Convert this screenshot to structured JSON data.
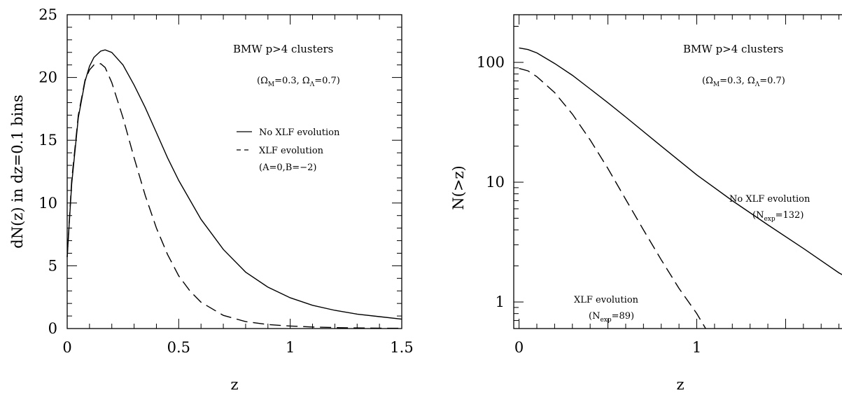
{
  "chart_data": [
    {
      "type": "line",
      "ylabel": "dN(z) in dz=0.1 bins",
      "xlabel": "z",
      "xlim": [
        0,
        1.5
      ],
      "ylim": [
        0,
        25
      ],
      "xticks": [
        {
          "value": 0,
          "label": "0"
        },
        {
          "value": 0.5,
          "label": "0.5"
        },
        {
          "value": 1,
          "label": "1"
        },
        {
          "value": 1.5,
          "label": "1.5"
        }
      ],
      "yticks": [
        {
          "value": 0,
          "label": "0"
        },
        {
          "value": 5,
          "label": "5"
        },
        {
          "value": 10,
          "label": "10"
        },
        {
          "value": 15,
          "label": "15"
        },
        {
          "value": 20,
          "label": "20"
        },
        {
          "value": 25,
          "label": "25"
        }
      ],
      "annotations": {
        "title": "BMW p>4 clusters",
        "cosmology": "(Ω",
        "cosmology_sub1": "M",
        "cosmology_mid": "=0.3,  Ω",
        "cosmology_sub2": "Λ",
        "cosmology_end": "=0.7)"
      },
      "legend": [
        {
          "label": "No XLF evolution",
          "style": "solid"
        },
        {
          "label": "XLF evolution",
          "style": "dashed"
        },
        {
          "label": "(A=0,B=−2)",
          "style": "none"
        }
      ],
      "series": [
        {
          "style": "solid",
          "x": [
            0,
            0.02,
            0.05,
            0.08,
            0.1,
            0.12,
            0.15,
            0.17,
            0.2,
            0.25,
            0.3,
            0.35,
            0.4,
            0.45,
            0.5,
            0.6,
            0.7,
            0.8,
            0.9,
            1.0,
            1.1,
            1.2,
            1.3,
            1.4,
            1.5
          ],
          "values": [
            5.7,
            11.5,
            16.8,
            19.7,
            20.9,
            21.6,
            22.1,
            22.2,
            22.0,
            21.0,
            19.4,
            17.6,
            15.6,
            13.6,
            11.8,
            8.7,
            6.3,
            4.5,
            3.3,
            2.45,
            1.85,
            1.45,
            1.15,
            0.95,
            0.75
          ]
        },
        {
          "style": "dashed",
          "x": [
            0,
            0.02,
            0.05,
            0.08,
            0.1,
            0.12,
            0.15,
            0.17,
            0.2,
            0.25,
            0.3,
            0.35,
            0.4,
            0.45,
            0.5,
            0.55,
            0.6,
            0.7,
            0.8,
            0.9,
            1.0,
            1.1,
            1.2,
            1.3,
            1.4,
            1.5
          ],
          "values": [
            5.7,
            11.8,
            17.0,
            19.8,
            20.6,
            21.0,
            21.1,
            20.8,
            19.6,
            16.8,
            13.6,
            10.6,
            8.0,
            5.9,
            4.2,
            3.0,
            2.1,
            1.05,
            0.55,
            0.32,
            0.2,
            0.12,
            0.08,
            0.05,
            0.03,
            0.02
          ]
        }
      ]
    },
    {
      "type": "line",
      "ylabel": "N(>z)",
      "xlabel": "z",
      "yscale": "log",
      "xlim": [
        -0.03,
        1.9
      ],
      "ylim": [
        0.6,
        250
      ],
      "xticks": [
        {
          "value": 0,
          "label": "0"
        },
        {
          "value": 1,
          "label": "1"
        }
      ],
      "yticks": [
        {
          "value": 1,
          "label": "1"
        },
        {
          "value": 10,
          "label": "10"
        },
        {
          "value": 100,
          "label": "100"
        }
      ],
      "annotations": {
        "title": "BMW p>4 clusters",
        "cosmology": "(Ω",
        "cosmology_sub1": "M",
        "cosmology_mid": "=0.3,  Ω",
        "cosmology_sub2": "Λ",
        "cosmology_end": "=0.7)",
        "solid_label": "No XLF evolution",
        "solid_nexp_pre": "(N",
        "solid_nexp_sub": "exp",
        "solid_nexp_post": "=132)",
        "dashed_label": "XLF evolution",
        "dashed_nexp_pre": "(N",
        "dashed_nexp_sub": "exp",
        "dashed_nexp_post": "=89)"
      },
      "series": [
        {
          "name": "No XLF evolution",
          "style": "solid",
          "x": [
            0,
            0.05,
            0.1,
            0.2,
            0.3,
            0.4,
            0.5,
            0.6,
            0.8,
            1.0,
            1.2,
            1.4,
            1.6,
            1.8,
            1.9
          ],
          "values": [
            132,
            128,
            120,
            98,
            78,
            60,
            46,
            35,
            20,
            11.5,
            7.0,
            4.4,
            2.8,
            1.75,
            1.45
          ]
        },
        {
          "name": "XLF evolution",
          "style": "dashed",
          "x": [
            0,
            0.05,
            0.1,
            0.2,
            0.3,
            0.4,
            0.5,
            0.6,
            0.7,
            0.8,
            0.9,
            1.0,
            1.05
          ],
          "values": [
            89,
            85,
            76,
            56,
            37,
            22.5,
            13,
            7.2,
            4.0,
            2.25,
            1.3,
            0.8,
            0.6
          ]
        }
      ]
    }
  ]
}
